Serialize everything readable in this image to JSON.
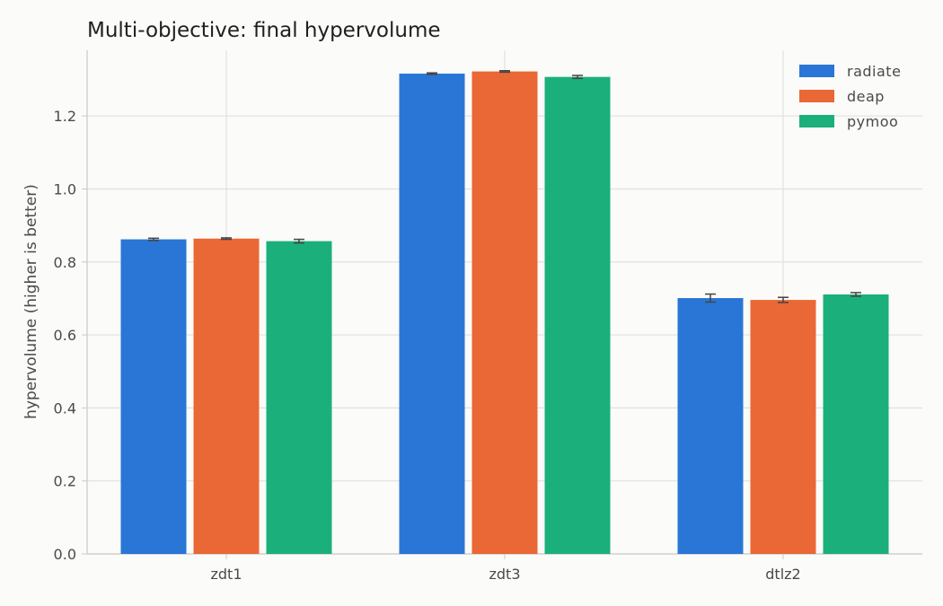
{
  "chart_data": {
    "type": "bar",
    "title": "Multi-objective: final hypervolume",
    "xlabel": "",
    "ylabel": "hypervolume (higher is better)",
    "categories": [
      "zdt1",
      "zdt3",
      "dtlz2"
    ],
    "ylim": [
      0,
      1.38
    ],
    "yticks": [
      "0.0",
      "0.2",
      "0.4",
      "0.6",
      "0.8",
      "1.0",
      "1.2"
    ],
    "grid": true,
    "legend_position": "top-right",
    "series": [
      {
        "name": "radiate",
        "color": "#2976d6",
        "values": [
          0.862,
          1.316,
          0.701
        ],
        "errors": [
          0.003,
          0.002,
          0.011
        ]
      },
      {
        "name": "deap",
        "color": "#ea6836",
        "values": [
          0.864,
          1.322,
          0.696
        ],
        "errors": [
          0.002,
          0.002,
          0.007
        ]
      },
      {
        "name": "pymoo",
        "color": "#1bb07b",
        "values": [
          0.857,
          1.307,
          0.711
        ],
        "errors": [
          0.005,
          0.004,
          0.005
        ]
      }
    ]
  }
}
